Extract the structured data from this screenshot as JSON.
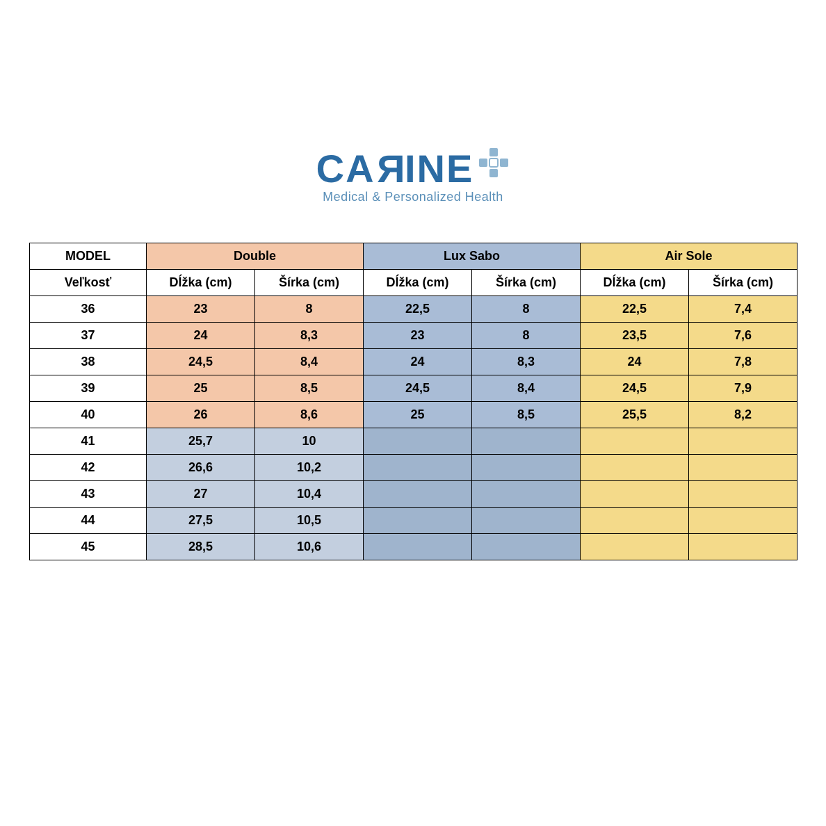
{
  "logo": {
    "brand_pre": "CA",
    "brand_rev": "R",
    "brand_post": "INE",
    "tagline": "Medical & Personalized Health",
    "brand_color": "#2b6ba3",
    "tagline_color": "#5a8fb8",
    "plus_fill": "#8fb5d1"
  },
  "table": {
    "header_model": "MODEL",
    "header_size": "Veľkosť",
    "models": [
      {
        "name": "Double",
        "bg_top": "#f4c7a9",
        "bg_bottom": "#c3cfdf"
      },
      {
        "name": "Lux Sabo",
        "bg_top": "#a9bcd6",
        "bg_bottom": "#9fb4cd"
      },
      {
        "name": "Air Sole",
        "bg_top": "#f4da8a",
        "bg_bottom": "#f4da8a"
      }
    ],
    "subcols": {
      "length": "Dĺžka (cm)",
      "width": "Šírka (cm)"
    },
    "first_col_bg": "#ffffff",
    "split_after_row_index": 5,
    "sizes": [
      "36",
      "37",
      "38",
      "39",
      "40",
      "41",
      "42",
      "43",
      "44",
      "45"
    ],
    "rows": [
      {
        "double": [
          "23",
          "8"
        ],
        "lux": [
          "22,5",
          "8"
        ],
        "air": [
          "22,5",
          "7,4"
        ]
      },
      {
        "double": [
          "24",
          "8,3"
        ],
        "lux": [
          "23",
          "8"
        ],
        "air": [
          "23,5",
          "7,6"
        ]
      },
      {
        "double": [
          "24,5",
          "8,4"
        ],
        "lux": [
          "24",
          "8,3"
        ],
        "air": [
          "24",
          "7,8"
        ]
      },
      {
        "double": [
          "25",
          "8,5"
        ],
        "lux": [
          "24,5",
          "8,4"
        ],
        "air": [
          "24,5",
          "7,9"
        ]
      },
      {
        "double": [
          "26",
          "8,6"
        ],
        "lux": [
          "25",
          "8,5"
        ],
        "air": [
          "25,5",
          "8,2"
        ]
      },
      {
        "double": [
          "25,7",
          "10"
        ],
        "lux": [
          "",
          ""
        ],
        "air": [
          "",
          ""
        ]
      },
      {
        "double": [
          "26,6",
          "10,2"
        ],
        "lux": [
          "",
          ""
        ],
        "air": [
          "",
          ""
        ]
      },
      {
        "double": [
          "27",
          "10,4"
        ],
        "lux": [
          "",
          ""
        ],
        "air": [
          "",
          ""
        ]
      },
      {
        "double": [
          "27,5",
          "10,5"
        ],
        "lux": [
          "",
          ""
        ],
        "air": [
          "",
          ""
        ]
      },
      {
        "double": [
          "28,5",
          "10,6"
        ],
        "lux": [
          "",
          ""
        ],
        "air": [
          "",
          ""
        ]
      }
    ]
  }
}
